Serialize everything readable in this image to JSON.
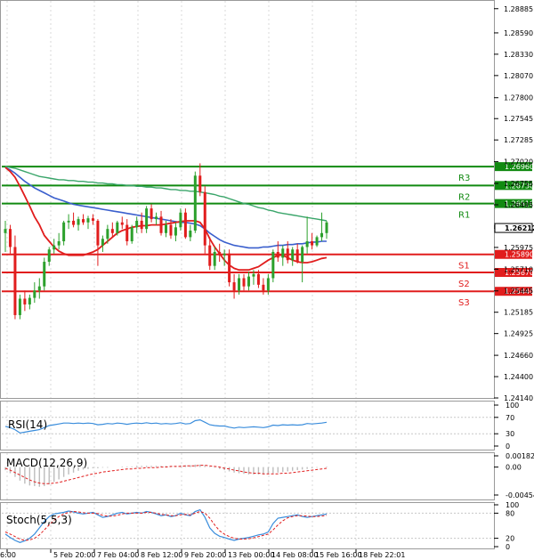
{
  "chart_data": {
    "type": "candlestick",
    "colors": {
      "bull": "#2ca02c",
      "bear": "#e11d1d",
      "ma_fast": "#e11d1d",
      "ma_slow": "#3a5fcd",
      "ma_long": "#3aa56a",
      "resistance": "#118a11",
      "support": "#e11d1d",
      "indicator_line": "#3a8ddc",
      "indicator_signal": "#e11d1d",
      "histogram": "#bdbdbd",
      "grid": "#d9d9d9",
      "current_price_box": "#000000"
    },
    "price_axis": {
      "ylim": [
        1.2414,
        1.2898
      ],
      "ticks": [
        "1.28885",
        "1.28590",
        "1.28330",
        "1.28070",
        "1.27800",
        "1.27545",
        "1.27285",
        "1.27020",
        "1.26755",
        "1.26495",
        "1.26235",
        "1.25975",
        "1.25710",
        "1.25445",
        "1.25185",
        "1.24925",
        "1.24660",
        "1.24400",
        "1.24140"
      ]
    },
    "current_price": "1.26212",
    "levels": [
      {
        "name": "R3",
        "value": 1.2696,
        "label": "1.26960",
        "kind": "resistance"
      },
      {
        "name": "R2",
        "value": 1.2673,
        "label": "1.26730",
        "kind": "resistance"
      },
      {
        "name": "R1",
        "value": 1.2651,
        "label": "1.26510",
        "kind": "resistance"
      },
      {
        "name": "S1",
        "value": 1.2589,
        "label": "1.25890",
        "kind": "support"
      },
      {
        "name": "S2",
        "value": 1.2567,
        "label": "1.25670",
        "kind": "support"
      },
      {
        "name": "S3",
        "value": 1.2544,
        "label": "1.25440",
        "kind": "support"
      }
    ],
    "x_labels": [
      "6:00",
      "5 Feb 20:00",
      "7 Feb 04:00",
      "8 Feb 12:00",
      "9 Feb 20:00",
      "13 Feb 00:00",
      "14 Feb 08:00",
      "15 Feb 16:00",
      "18 Feb 22:01"
    ],
    "candles": [
      {
        "o": 1.2615,
        "h": 1.263,
        "l": 1.2592,
        "c": 1.262
      },
      {
        "o": 1.262,
        "h": 1.2625,
        "l": 1.259,
        "c": 1.2598
      },
      {
        "o": 1.2598,
        "h": 1.2612,
        "l": 1.251,
        "c": 1.2515
      },
      {
        "o": 1.2515,
        "h": 1.254,
        "l": 1.251,
        "c": 1.2535
      },
      {
        "o": 1.2535,
        "h": 1.2545,
        "l": 1.252,
        "c": 1.2528
      },
      {
        "o": 1.2528,
        "h": 1.254,
        "l": 1.2522,
        "c": 1.2536
      },
      {
        "o": 1.2536,
        "h": 1.2555,
        "l": 1.253,
        "c": 1.2545
      },
      {
        "o": 1.2545,
        "h": 1.256,
        "l": 1.2535,
        "c": 1.255
      },
      {
        "o": 1.255,
        "h": 1.2585,
        "l": 1.2545,
        "c": 1.258
      },
      {
        "o": 1.258,
        "h": 1.2598,
        "l": 1.2575,
        "c": 1.2595
      },
      {
        "o": 1.2595,
        "h": 1.2608,
        "l": 1.259,
        "c": 1.26
      },
      {
        "o": 1.26,
        "h": 1.2615,
        "l": 1.2595,
        "c": 1.2605
      },
      {
        "o": 1.2605,
        "h": 1.263,
        "l": 1.26,
        "c": 1.2628
      },
      {
        "o": 1.2628,
        "h": 1.2638,
        "l": 1.262,
        "c": 1.263
      },
      {
        "o": 1.263,
        "h": 1.264,
        "l": 1.2622,
        "c": 1.2625
      },
      {
        "o": 1.2625,
        "h": 1.2635,
        "l": 1.2618,
        "c": 1.2632
      },
      {
        "o": 1.2632,
        "h": 1.2638,
        "l": 1.2625,
        "c": 1.2628
      },
      {
        "o": 1.2628,
        "h": 1.2636,
        "l": 1.262,
        "c": 1.2633
      },
      {
        "o": 1.2633,
        "h": 1.2638,
        "l": 1.2625,
        "c": 1.263
      },
      {
        "o": 1.263,
        "h": 1.2632,
        "l": 1.2575,
        "c": 1.26
      },
      {
        "o": 1.26,
        "h": 1.2612,
        "l": 1.2592,
        "c": 1.2608
      },
      {
        "o": 1.2608,
        "h": 1.2625,
        "l": 1.2602,
        "c": 1.262
      },
      {
        "o": 1.262,
        "h": 1.2628,
        "l": 1.261,
        "c": 1.2615
      },
      {
        "o": 1.2615,
        "h": 1.263,
        "l": 1.2612,
        "c": 1.2628
      },
      {
        "o": 1.2628,
        "h": 1.2635,
        "l": 1.262,
        "c": 1.2625
      },
      {
        "o": 1.2625,
        "h": 1.2632,
        "l": 1.26,
        "c": 1.2605
      },
      {
        "o": 1.2605,
        "h": 1.2625,
        "l": 1.2602,
        "c": 1.2622
      },
      {
        "o": 1.2622,
        "h": 1.2635,
        "l": 1.2615,
        "c": 1.263
      },
      {
        "o": 1.263,
        "h": 1.264,
        "l": 1.2615,
        "c": 1.262
      },
      {
        "o": 1.262,
        "h": 1.2648,
        "l": 1.2615,
        "c": 1.2645
      },
      {
        "o": 1.2645,
        "h": 1.265,
        "l": 1.2628,
        "c": 1.2632
      },
      {
        "o": 1.2632,
        "h": 1.264,
        "l": 1.2625,
        "c": 1.2635
      },
      {
        "o": 1.2635,
        "h": 1.2642,
        "l": 1.2612,
        "c": 1.2615
      },
      {
        "o": 1.2615,
        "h": 1.263,
        "l": 1.261,
        "c": 1.2625
      },
      {
        "o": 1.2625,
        "h": 1.2632,
        "l": 1.2608,
        "c": 1.2612
      },
      {
        "o": 1.2612,
        "h": 1.2628,
        "l": 1.2605,
        "c": 1.2622
      },
      {
        "o": 1.2622,
        "h": 1.2645,
        "l": 1.2618,
        "c": 1.264
      },
      {
        "o": 1.264,
        "h": 1.2645,
        "l": 1.2608,
        "c": 1.261
      },
      {
        "o": 1.261,
        "h": 1.2625,
        "l": 1.2605,
        "c": 1.2618
      },
      {
        "o": 1.2618,
        "h": 1.269,
        "l": 1.2615,
        "c": 1.2685
      },
      {
        "o": 1.2685,
        "h": 1.27,
        "l": 1.266,
        "c": 1.2665
      },
      {
        "o": 1.2665,
        "h": 1.2672,
        "l": 1.259,
        "c": 1.26
      },
      {
        "o": 1.26,
        "h": 1.261,
        "l": 1.257,
        "c": 1.2575
      },
      {
        "o": 1.2575,
        "h": 1.2598,
        "l": 1.257,
        "c": 1.2592
      },
      {
        "o": 1.2592,
        "h": 1.2602,
        "l": 1.258,
        "c": 1.2588
      },
      {
        "o": 1.2588,
        "h": 1.2595,
        "l": 1.2575,
        "c": 1.259
      },
      {
        "o": 1.259,
        "h": 1.2595,
        "l": 1.255,
        "c": 1.2555
      },
      {
        "o": 1.2555,
        "h": 1.2565,
        "l": 1.2535,
        "c": 1.2545
      },
      {
        "o": 1.2545,
        "h": 1.2565,
        "l": 1.254,
        "c": 1.256
      },
      {
        "o": 1.256,
        "h": 1.2565,
        "l": 1.2545,
        "c": 1.255
      },
      {
        "o": 1.255,
        "h": 1.2568,
        "l": 1.2545,
        "c": 1.2562
      },
      {
        "o": 1.2562,
        "h": 1.257,
        "l": 1.2552,
        "c": 1.2565
      },
      {
        "o": 1.2565,
        "h": 1.257,
        "l": 1.2548,
        "c": 1.2552
      },
      {
        "o": 1.2552,
        "h": 1.256,
        "l": 1.254,
        "c": 1.2545
      },
      {
        "o": 1.2545,
        "h": 1.2565,
        "l": 1.254,
        "c": 1.256
      },
      {
        "o": 1.256,
        "h": 1.2595,
        "l": 1.2555,
        "c": 1.2592
      },
      {
        "o": 1.2592,
        "h": 1.2605,
        "l": 1.258,
        "c": 1.2585
      },
      {
        "o": 1.2585,
        "h": 1.26,
        "l": 1.2575,
        "c": 1.2596
      },
      {
        "o": 1.2596,
        "h": 1.2605,
        "l": 1.2578,
        "c": 1.2582
      },
      {
        "o": 1.2582,
        "h": 1.2598,
        "l": 1.2575,
        "c": 1.2595
      },
      {
        "o": 1.2595,
        "h": 1.2602,
        "l": 1.2578,
        "c": 1.258
      },
      {
        "o": 1.258,
        "h": 1.26,
        "l": 1.2555,
        "c": 1.2598
      },
      {
        "o": 1.2598,
        "h": 1.2635,
        "l": 1.259,
        "c": 1.2605
      },
      {
        "o": 1.2605,
        "h": 1.2615,
        "l": 1.2595,
        "c": 1.26
      },
      {
        "o": 1.26,
        "h": 1.2612,
        "l": 1.2598,
        "c": 1.261
      },
      {
        "o": 1.261,
        "h": 1.264,
        "l": 1.2605,
        "c": 1.2615
      },
      {
        "o": 1.2615,
        "h": 1.263,
        "l": 1.2608,
        "c": 1.2628
      }
    ],
    "ma_fast": [
      1.2695,
      1.269,
      1.2683,
      1.2672,
      1.266,
      1.2648,
      1.2635,
      1.2625,
      1.2612,
      1.2605,
      1.2598,
      1.2593,
      1.259,
      1.2588,
      1.2588,
      1.2588,
      1.2588,
      1.259,
      1.2592,
      1.2595,
      1.26,
      1.2605,
      1.261,
      1.2615,
      1.2618,
      1.262,
      1.2622,
      1.2623,
      1.2624,
      1.2624,
      1.2625,
      1.2625,
      1.2625,
      1.2626,
      1.2627,
      1.2628,
      1.2629,
      1.263,
      1.263,
      1.263,
      1.2628,
      1.262,
      1.2608,
      1.2598,
      1.259,
      1.2582,
      1.2576,
      1.2572,
      1.257,
      1.257,
      1.257,
      1.2572,
      1.2574,
      1.2578,
      1.2582,
      1.2585,
      1.2588,
      1.2588,
      1.2585,
      1.2582,
      1.258,
      1.2579,
      1.2579,
      1.258,
      1.2582,
      1.2584,
      1.2585
    ],
    "ma_slow": [
      1.2695,
      1.2692,
      1.2688,
      1.2683,
      1.2678,
      1.2674,
      1.267,
      1.2667,
      1.2664,
      1.2661,
      1.2658,
      1.2656,
      1.2654,
      1.2652,
      1.265,
      1.2649,
      1.2648,
      1.2647,
      1.2646,
      1.2645,
      1.2644,
      1.2643,
      1.2642,
      1.2641,
      1.264,
      1.2639,
      1.2638,
      1.2637,
      1.2636,
      1.2635,
      1.2634,
      1.2633,
      1.2632,
      1.2631,
      1.263,
      1.2629,
      1.2628,
      1.2628,
      1.2627,
      1.2626,
      1.2624,
      1.262,
      1.2615,
      1.2611,
      1.2607,
      1.2604,
      1.2602,
      1.26,
      1.2599,
      1.2598,
      1.2597,
      1.2597,
      1.2597,
      1.2598,
      1.2598,
      1.2599,
      1.26,
      1.26,
      1.2601,
      1.2601,
      1.2602,
      1.2602,
      1.2603,
      1.2604,
      1.2604,
      1.2605,
      1.2605
    ],
    "ma_long": [
      1.2696,
      1.2695,
      1.2694,
      1.2692,
      1.269,
      1.2688,
      1.2686,
      1.2684,
      1.2683,
      1.2682,
      1.2681,
      1.268,
      1.268,
      1.2679,
      1.2679,
      1.2678,
      1.2678,
      1.2677,
      1.2677,
      1.2676,
      1.2676,
      1.2675,
      1.2675,
      1.2674,
      1.2674,
      1.2673,
      1.2673,
      1.2672,
      1.2672,
      1.2671,
      1.2671,
      1.267,
      1.267,
      1.2669,
      1.2668,
      1.2668,
      1.2667,
      1.2667,
      1.2666,
      1.2666,
      1.2665,
      1.2664,
      1.2663,
      1.2662,
      1.266,
      1.2659,
      1.2657,
      1.2655,
      1.2653,
      1.2651,
      1.265,
      1.2648,
      1.2646,
      1.2645,
      1.2643,
      1.2642,
      1.264,
      1.2639,
      1.2638,
      1.2637,
      1.2636,
      1.2635,
      1.2634,
      1.2633,
      1.2632,
      1.2631,
      1.263
    ],
    "rsi": {
      "label": "RSI(14)",
      "ylim": [
        0,
        100
      ],
      "ticks": [
        "100",
        "70",
        "30",
        "0"
      ],
      "tick_values": [
        100,
        70,
        30,
        0
      ],
      "values": [
        48,
        45,
        40,
        32,
        34,
        36,
        38,
        40,
        45,
        50,
        52,
        54,
        56,
        56,
        55,
        56,
        55,
        56,
        55,
        52,
        53,
        55,
        54,
        56,
        55,
        53,
        55,
        56,
        55,
        57,
        55,
        56,
        54,
        55,
        54,
        55,
        57,
        54,
        55,
        62,
        64,
        58,
        52,
        50,
        49,
        49,
        46,
        44,
        46,
        45,
        46,
        47,
        46,
        45,
        47,
        51,
        50,
        52,
        51,
        52,
        51,
        52,
        55,
        54,
        55,
        56,
        58
      ]
    },
    "macd": {
      "label": "MACD(12,26,9)",
      "ylim": [
        -0.004542,
        0.001829
      ],
      "ticks": [
        "0.001829",
        "0.00",
        "-0.004542"
      ],
      "tick_values": [
        0.001829,
        0.0,
        -0.004542
      ],
      "histogram": [
        -0.0005,
        -0.001,
        -0.0016,
        -0.0022,
        -0.0027,
        -0.003,
        -0.0031,
        -0.0032,
        -0.0031,
        -0.0028,
        -0.0024,
        -0.002,
        -0.0016,
        -0.0012,
        -0.0009,
        -0.0006,
        -0.0004,
        -0.0003,
        -0.0002,
        -0.0002,
        -0.0001,
        -0.0001,
        0.0,
        0.0,
        0.0001,
        0.0001,
        0.0001,
        0.0002,
        0.0002,
        0.0002,
        0.0002,
        0.0002,
        0.0002,
        0.0002,
        0.0002,
        0.0002,
        0.0003,
        0.0003,
        0.0003,
        0.0004,
        0.0004,
        0.0003,
        0.0001,
        -0.0001,
        -0.0003,
        -0.0005,
        -0.0007,
        -0.0009,
        -0.001,
        -0.0011,
        -0.0012,
        -0.0012,
        -0.0012,
        -0.0012,
        -0.0011,
        -0.001,
        -0.0009,
        -0.0008,
        -0.0007,
        -0.0006,
        -0.0005,
        -0.0004,
        -0.0003,
        -0.0002,
        -0.0001,
        0.0,
        0.0001
      ],
      "signal": [
        -0.0002,
        -0.0005,
        -0.0009,
        -0.0013,
        -0.0017,
        -0.0021,
        -0.0024,
        -0.0026,
        -0.0027,
        -0.0027,
        -0.0026,
        -0.0025,
        -0.0023,
        -0.0021,
        -0.0019,
        -0.0017,
        -0.0015,
        -0.0013,
        -0.0011,
        -0.001,
        -0.0008,
        -0.0007,
        -0.0006,
        -0.0005,
        -0.0004,
        -0.0003,
        -0.0003,
        -0.0002,
        -0.0002,
        -0.0001,
        -0.0001,
        -0.0001,
        0.0,
        0.0,
        0.0001,
        0.0001,
        0.0001,
        0.0002,
        0.0002,
        0.0002,
        0.0003,
        0.0003,
        0.0002,
        0.0001,
        0.0,
        -0.0002,
        -0.0003,
        -0.0005,
        -0.0006,
        -0.0008,
        -0.0009,
        -0.001,
        -0.001,
        -0.0011,
        -0.0011,
        -0.0011,
        -0.0011,
        -0.001,
        -0.001,
        -0.0009,
        -0.0008,
        -0.0007,
        -0.0006,
        -0.0005,
        -0.0004,
        -0.0003,
        -0.0002
      ]
    },
    "stoch": {
      "label": "Stoch(5,5,3)",
      "ylim": [
        0,
        100
      ],
      "ticks": [
        "100",
        "80",
        "20",
        "0"
      ],
      "tick_values": [
        100,
        80,
        20,
        0
      ],
      "k": [
        30,
        22,
        15,
        10,
        14,
        20,
        30,
        45,
        60,
        72,
        78,
        80,
        82,
        85,
        83,
        80,
        78,
        80,
        82,
        76,
        70,
        72,
        76,
        80,
        82,
        78,
        80,
        82,
        80,
        84,
        82,
        78,
        74,
        76,
        72,
        74,
        80,
        76,
        74,
        84,
        88,
        70,
        45,
        32,
        25,
        22,
        18,
        15,
        18,
        20,
        22,
        25,
        28,
        30,
        35,
        55,
        68,
        70,
        72,
        74,
        76,
        72,
        70,
        72,
        74,
        76,
        78
      ],
      "d": [
        35,
        30,
        24,
        18,
        15,
        16,
        20,
        28,
        40,
        52,
        63,
        72,
        78,
        82,
        84,
        83,
        81,
        80,
        80,
        79,
        75,
        73,
        73,
        75,
        78,
        80,
        80,
        80,
        80,
        82,
        82,
        80,
        77,
        76,
        74,
        74,
        76,
        77,
        76,
        80,
        84,
        80,
        68,
        52,
        38,
        30,
        24,
        20,
        18,
        18,
        19,
        21,
        24,
        27,
        30,
        40,
        52,
        62,
        69,
        72,
        74,
        74,
        73,
        72,
        72,
        73,
        75
      ]
    }
  }
}
